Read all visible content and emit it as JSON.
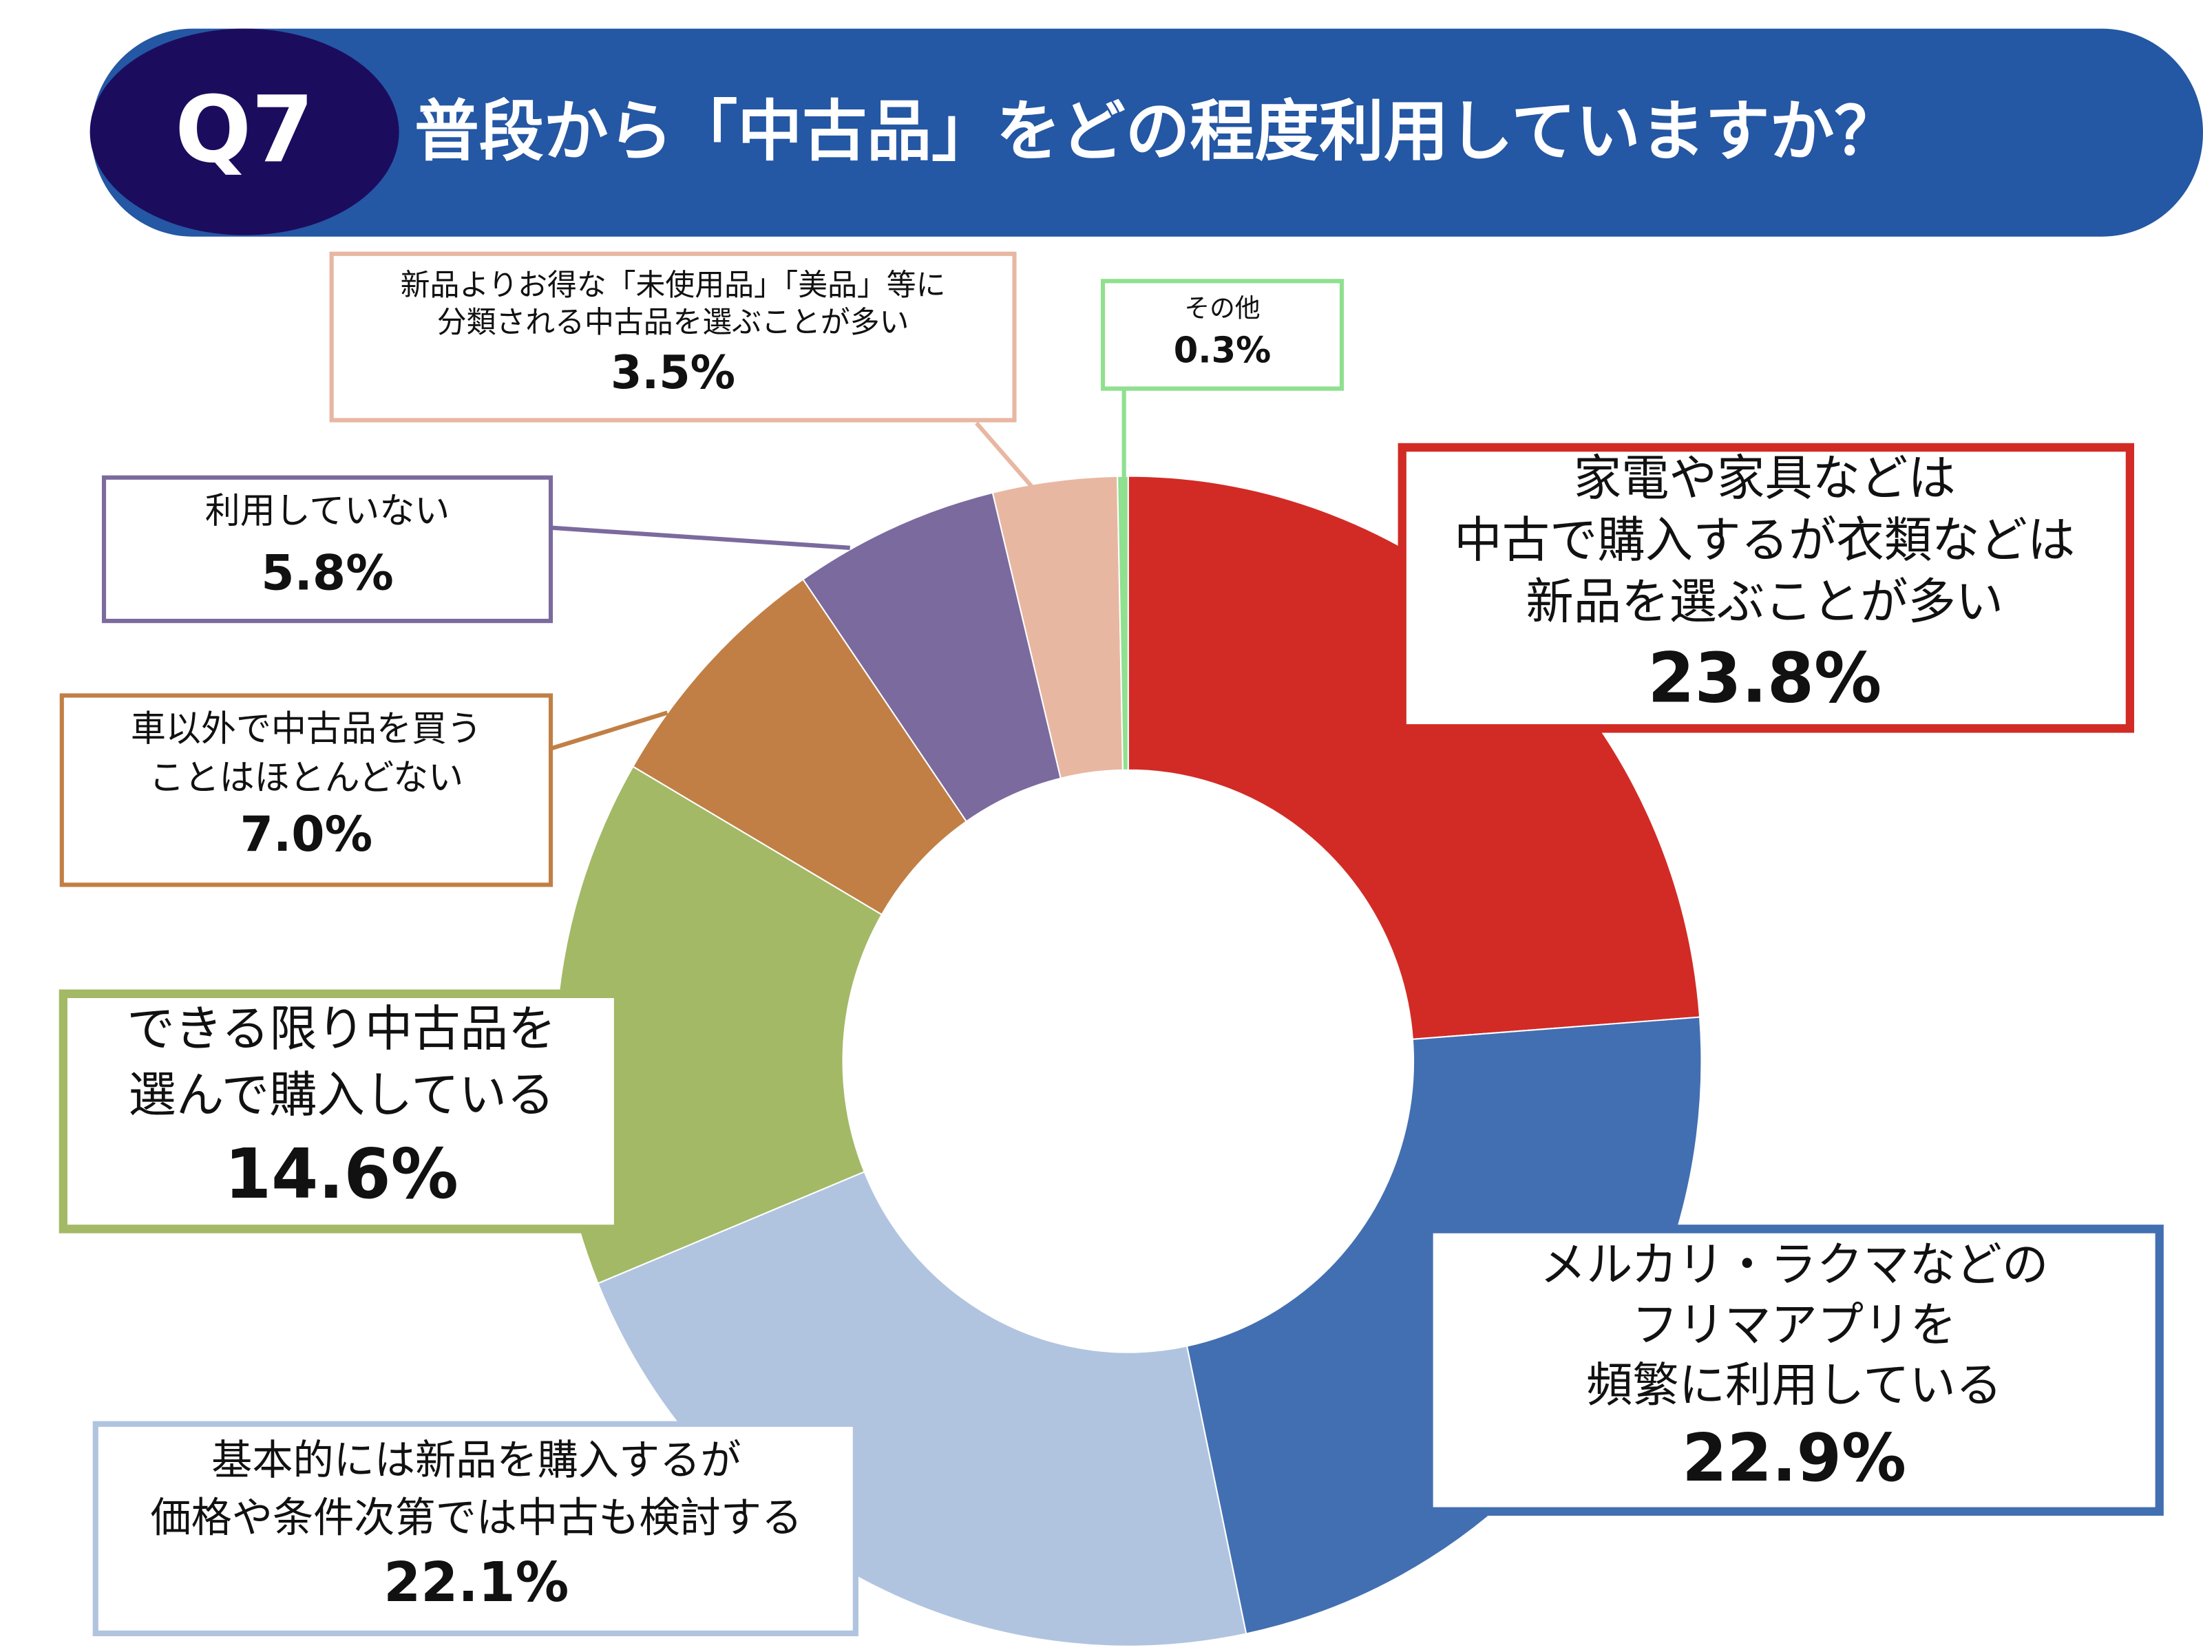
{
  "chart_data": {
    "type": "donut",
    "badge": "Q7",
    "title": "普段から「中古品」をどの程度利用していますか？",
    "categories": [
      "家電や家具などは\n中古で購入するが衣類などは\n新品を選ぶことが多い",
      "メルカリ・ラクマなどの\nフリマアプリを\n頻繁に利用している",
      "基本的には新品を購入するが\n価格や条件次第では中古も検討する",
      "できる限り中古品を\n選んで購入している",
      "車以外で中古品を買う\nことはほとんどない",
      "利用していない",
      "新品よりお得な「未使用品」「美品」等に\n分類される中古品を選ぶことが多い",
      "その他"
    ],
    "values": [
      23.8,
      22.9,
      22.1,
      14.6,
      7.0,
      5.8,
      3.5,
      0.3
    ],
    "value_labels": [
      "23.8%",
      "22.9%",
      "22.1%",
      "14.6%",
      "7.0%",
      "5.8%",
      "3.5%",
      "0.3%"
    ],
    "colors": [
      "#d22b25",
      "#426fb1",
      "#b0c4e0",
      "#a3b966",
      "#c17f45",
      "#7b6a9e",
      "#e8b7a2",
      "#8fe08f"
    ]
  }
}
